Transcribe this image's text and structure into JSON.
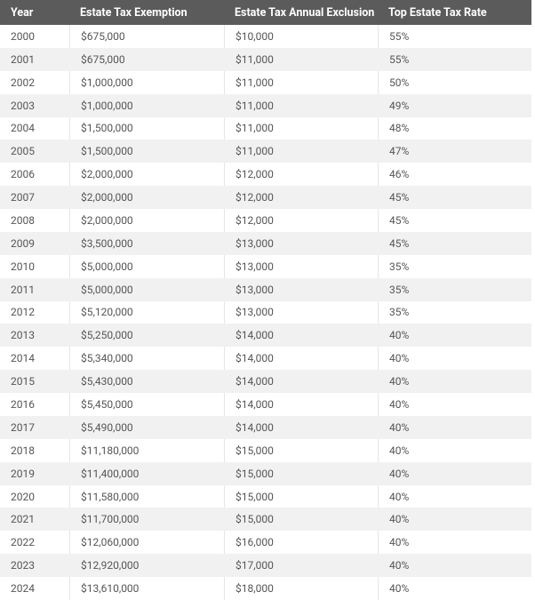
{
  "table": {
    "headers": [
      "Year",
      "Estate Tax Exemption",
      "Estate Tax Annual Exclusion",
      "Top Estate Tax Rate"
    ],
    "rows": [
      [
        "2000",
        "$675,000",
        "$10,000",
        "55%"
      ],
      [
        "2001",
        "$675,000",
        "$11,000",
        "55%"
      ],
      [
        "2002",
        "$1,000,000",
        "$11,000",
        "50%"
      ],
      [
        "2003",
        "$1,000,000",
        "$11,000",
        "49%"
      ],
      [
        "2004",
        "$1,500,000",
        "$11,000",
        "48%"
      ],
      [
        "2005",
        "$1,500,000",
        "$11,000",
        "47%"
      ],
      [
        "2006",
        "$2,000,000",
        "$12,000",
        "46%"
      ],
      [
        "2007",
        "$2,000,000",
        "$12,000",
        "45%"
      ],
      [
        "2008",
        "$2,000,000",
        "$12,000",
        "45%"
      ],
      [
        "2009",
        "$3,500,000",
        "$13,000",
        "45%"
      ],
      [
        "2010",
        "$5,000,000",
        "$13,000",
        "35%"
      ],
      [
        "2011",
        "$5,000,000",
        "$13,000",
        "35%"
      ],
      [
        "2012",
        "$5,120,000",
        "$13,000",
        "35%"
      ],
      [
        "2013",
        "$5,250,000",
        "$14,000",
        "40%"
      ],
      [
        "2014",
        "$5,340,000",
        "$14,000",
        "40%"
      ],
      [
        "2015",
        "$5,430,000",
        "$14,000",
        "40%"
      ],
      [
        "2016",
        "$5,450,000",
        "$14,000",
        "40%"
      ],
      [
        "2017",
        "$5,490,000",
        "$14,000",
        "40%"
      ],
      [
        "2018",
        "$11,180,000",
        "$15,000",
        "40%"
      ],
      [
        "2019",
        "$11,400,000",
        "$15,000",
        "40%"
      ],
      [
        "2020",
        "$11,580,000",
        "$15,000",
        "40%"
      ],
      [
        "2021",
        "$11,700,000",
        "$15,000",
        "40%"
      ],
      [
        "2022",
        "$12,060,000",
        "$16,000",
        "40%"
      ],
      [
        "2023",
        "$12,920,000",
        "$17,000",
        "40%"
      ],
      [
        "2024",
        "$13,610,000",
        "$18,000",
        "40%"
      ]
    ]
  }
}
